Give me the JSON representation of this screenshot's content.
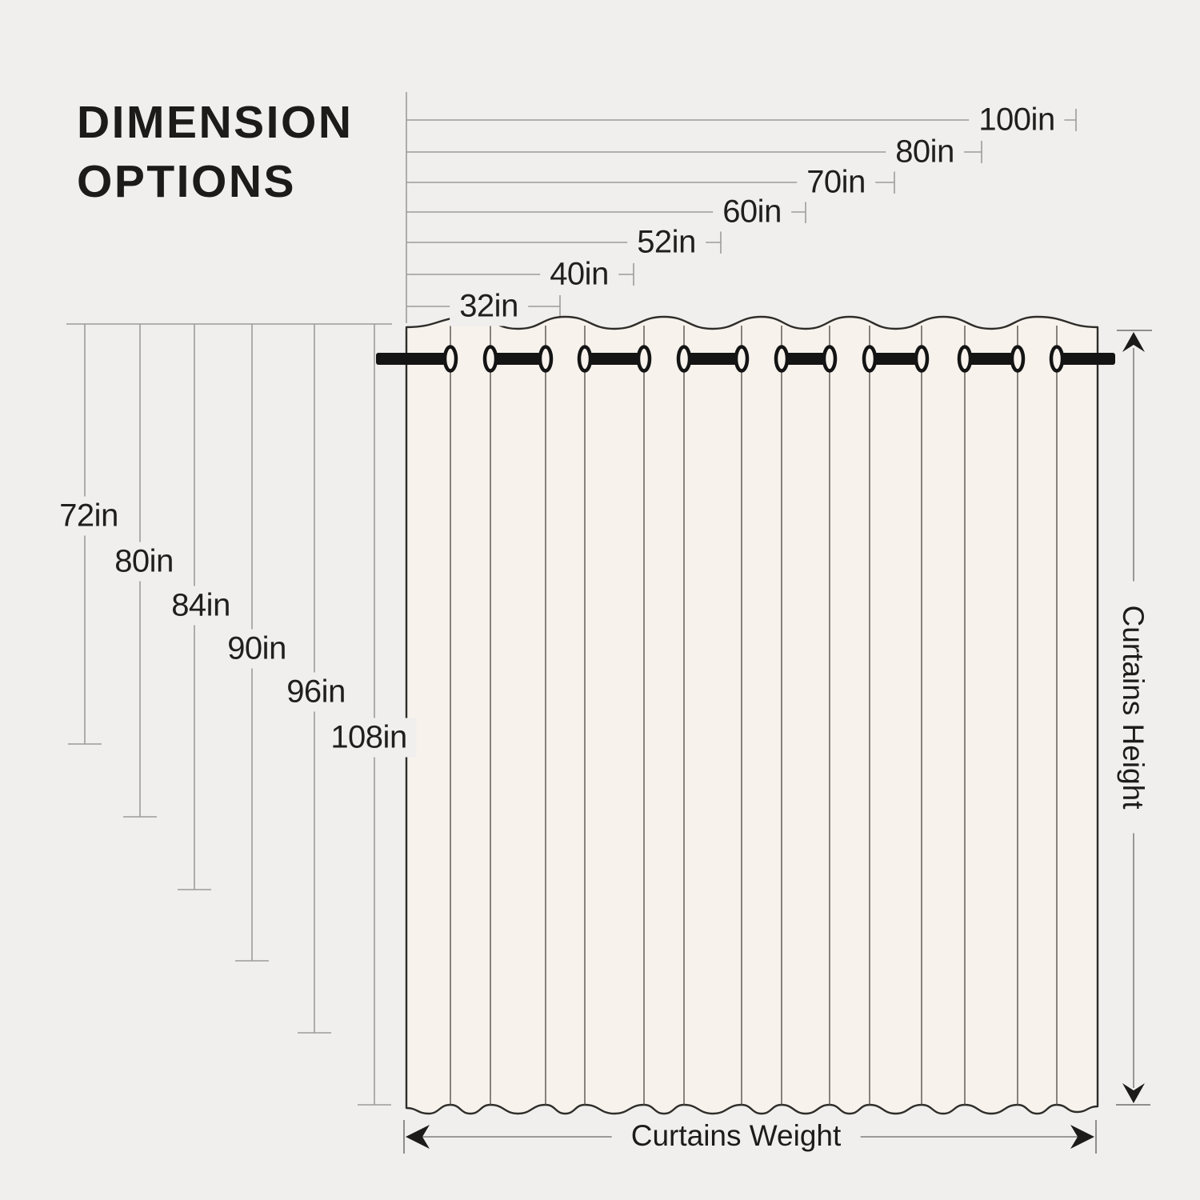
{
  "title": {
    "line1": "DIMENSION",
    "line2": "OPTIONS"
  },
  "dimension_options": {
    "widths": [
      "32in",
      "40in",
      "52in",
      "60in",
      "70in",
      "80in",
      "100in"
    ],
    "heights": [
      "72in",
      "80in",
      "84in",
      "90in",
      "96in",
      "108in"
    ]
  },
  "axis_labels": {
    "height": "Curtains Height",
    "width": "Curtains Weight"
  },
  "colors": {
    "background": "#f0efee",
    "curtain_fill": "#f7f2ec",
    "curtain_outline": "#2f2d29",
    "measure_line": "#9d9c9a",
    "rod": "#141414",
    "text": "#1d1c1a"
  }
}
